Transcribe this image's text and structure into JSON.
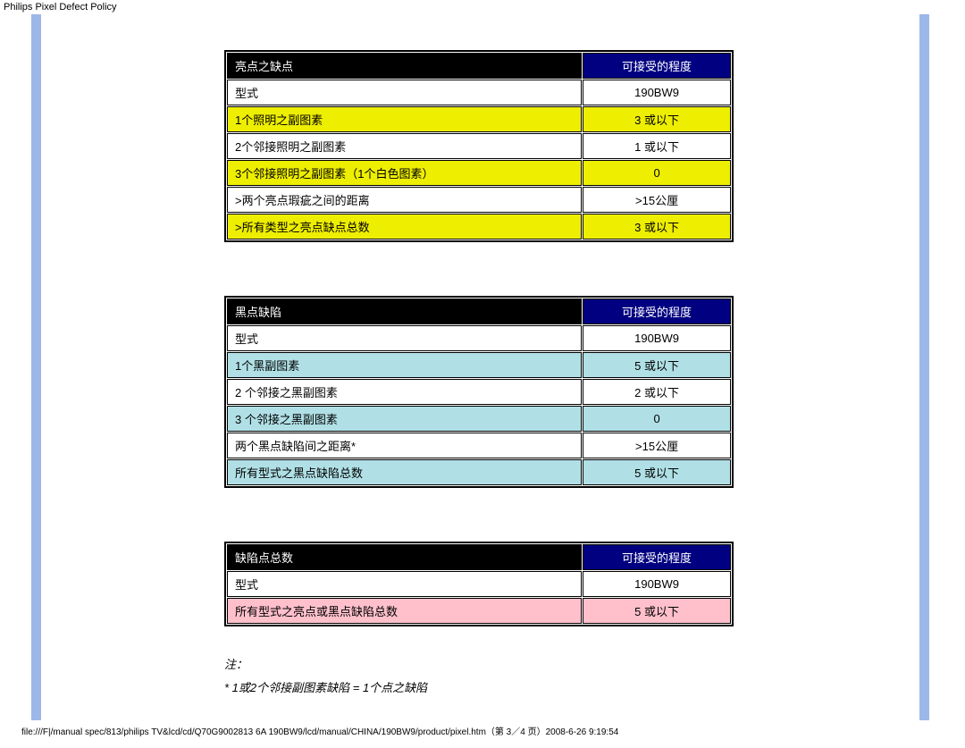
{
  "page_title": "Philips Pixel Defect Policy",
  "colors": {
    "header_bg": "#000080",
    "header_text": "#ffffff",
    "header_title_bg": "#000000",
    "yellow": "#eeee00",
    "cyan": "#b0e0e6",
    "pink": "#ffc0cb",
    "white": "#ffffff",
    "rail": "#9db7e8"
  },
  "table1": {
    "h1": "亮点之缺点",
    "h2": "可接受的程度",
    "rows": [
      {
        "label": "型式",
        "value": "190BW9",
        "color": "white"
      },
      {
        "label": "1个照明之副图素",
        "value": "3 或以下",
        "color": "yellow"
      },
      {
        "label": "2个邻接照明之副图素",
        "value": "1 或以下",
        "color": "white"
      },
      {
        "label": "3个邻接照明之副图素（1个白色图素）",
        "value": "0",
        "color": "yellow"
      },
      {
        "label": ">两个亮点瑕疵之间的距离",
        "value": ">15公厘",
        "color": "white"
      },
      {
        "label": ">所有类型之亮点缺点总数",
        "value": "3 或以下",
        "color": "yellow"
      }
    ]
  },
  "table2": {
    "h1": "黑点缺陷",
    "h2": "可接受的程度",
    "rows": [
      {
        "label": "型式",
        "value": "190BW9",
        "color": "white"
      },
      {
        "label": "1个黑副图素",
        "value": "5 或以下",
        "color": "cyan"
      },
      {
        "label": "2 个邻接之黑副图素",
        "value": "2 或以下",
        "color": "white"
      },
      {
        "label": "3 个邻接之黑副图素",
        "value": "0",
        "color": "cyan"
      },
      {
        "label": "两个黑点缺陷间之距离*",
        "value": ">15公厘",
        "color": "white"
      },
      {
        "label": "所有型式之黑点缺陷总数",
        "value": "5 或以下",
        "color": "cyan"
      }
    ]
  },
  "table3": {
    "h1": "缺陷点总数",
    "h2": "可接受的程度",
    "rows": [
      {
        "label": "型式",
        "value": "190BW9",
        "color": "white"
      },
      {
        "label": "所有型式之亮点或黑点缺陷总数",
        "value": "5  或以下",
        "color": "pink"
      }
    ]
  },
  "notes": {
    "line1": "注：",
    "line2": "* 1或2个邻接副图素缺陷 = 1个点之缺陷"
  },
  "footer": "file:///F|/manual spec/813/philips TV&lcd/cd/Q70G9002813 6A 190BW9/lcd/manual/CHINA/190BW9/product/pixel.htm（第 3／4 页）2008-6-26 9:19:54"
}
